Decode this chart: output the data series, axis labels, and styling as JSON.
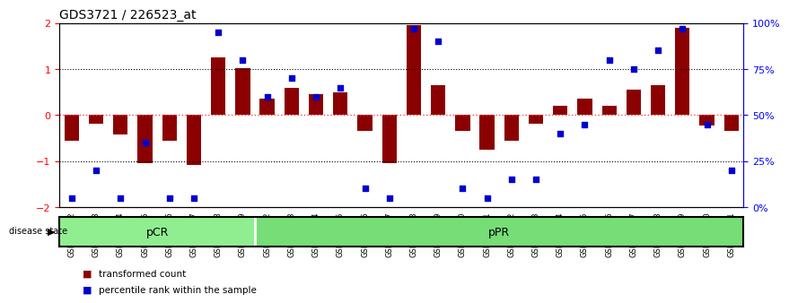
{
  "title": "GDS3721 / 226523_at",
  "samples": [
    "GSM559062",
    "GSM559063",
    "GSM559064",
    "GSM559065",
    "GSM559066",
    "GSM559067",
    "GSM559068",
    "GSM559069",
    "GSM559042",
    "GSM559043",
    "GSM559044",
    "GSM559045",
    "GSM559046",
    "GSM559047",
    "GSM559048",
    "GSM559049",
    "GSM559050",
    "GSM559051",
    "GSM559052",
    "GSM559053",
    "GSM559054",
    "GSM559055",
    "GSM559056",
    "GSM559057",
    "GSM559058",
    "GSM559059",
    "GSM559060",
    "GSM559061"
  ],
  "bar_values": [
    -0.55,
    -0.18,
    -0.42,
    -1.05,
    -0.55,
    -1.08,
    1.25,
    1.02,
    0.35,
    0.6,
    0.45,
    0.5,
    -0.35,
    -1.05,
    1.95,
    0.65,
    -0.35,
    -0.75,
    -0.55,
    -0.18,
    0.2,
    0.35,
    0.2,
    0.55,
    0.65,
    1.9,
    -0.22,
    -0.35
  ],
  "percentile_values": [
    5,
    20,
    5,
    35,
    5,
    5,
    95,
    80,
    60,
    70,
    60,
    65,
    10,
    5,
    97,
    90,
    10,
    5,
    15,
    15,
    40,
    45,
    80,
    75,
    85,
    97,
    45,
    20
  ],
  "group_labels": [
    "pCR",
    "pPR"
  ],
  "group_colors": [
    "#90EE90",
    "#77DD77"
  ],
  "group_boundaries": [
    0,
    8,
    28
  ],
  "bar_color": "#8B0000",
  "dot_color": "#0000CD",
  "ylim": [
    -2.0,
    2.0
  ],
  "percentile_ylim": [
    0,
    100
  ],
  "dotted_lines": [
    1.0,
    -1.0
  ],
  "zero_line_color": "#FF4444",
  "legend_items": [
    {
      "label": "transformed count",
      "color": "#8B0000",
      "marker": "s"
    },
    {
      "label": "percentile rank within the sample",
      "color": "#0000CD",
      "marker": "s"
    }
  ]
}
